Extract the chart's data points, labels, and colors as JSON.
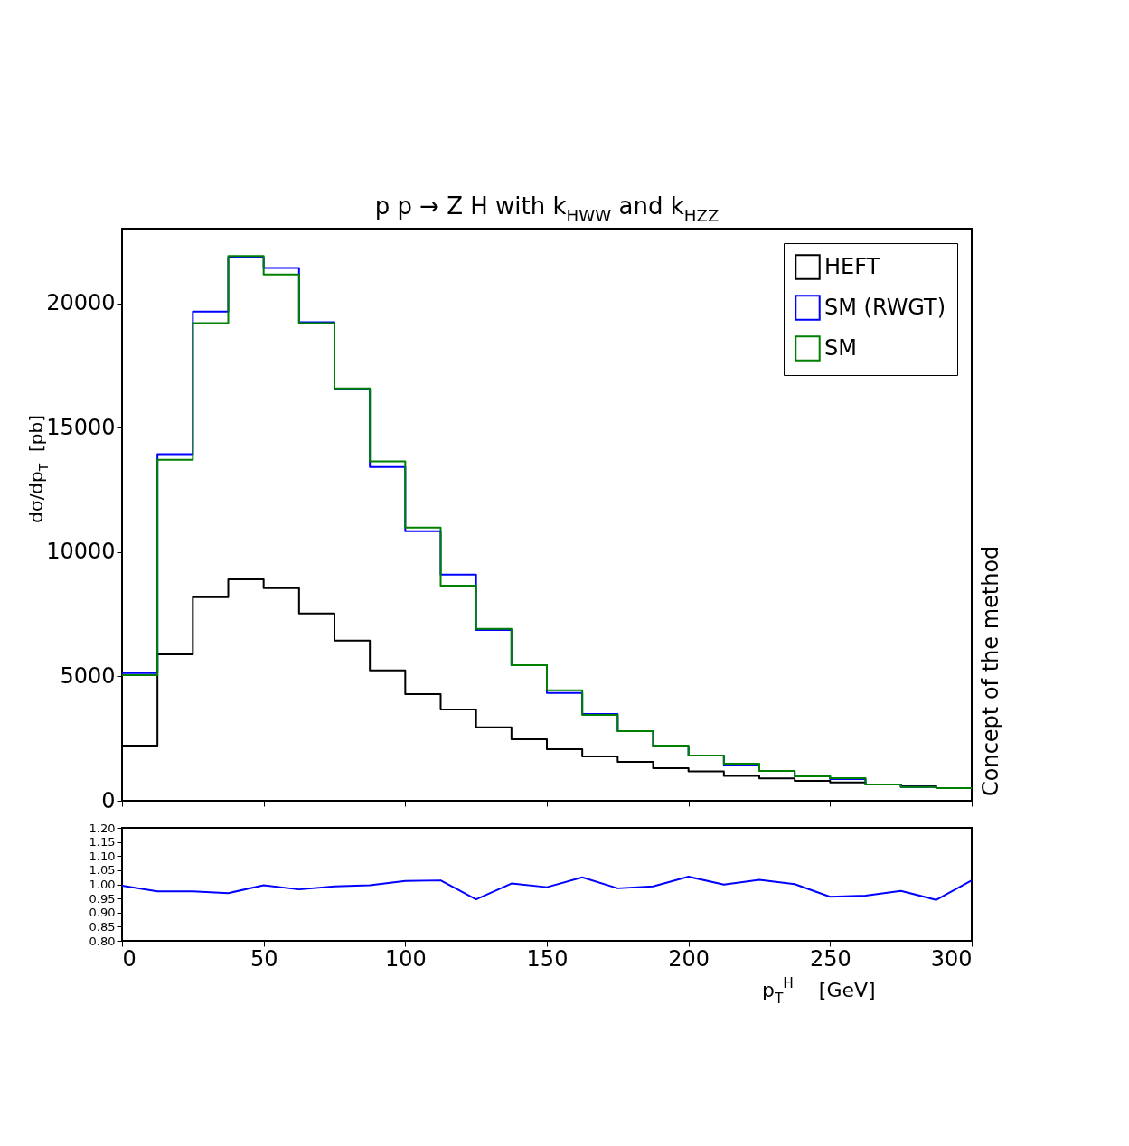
{
  "chart_data": [
    {
      "type": "histogram",
      "title": "p p → Z H with k$_{HWW}$ and k$_{HZZ}$",
      "ylabel": "dσ/dp$_{T}$  [pb]",
      "bins": [
        0,
        12.5,
        25,
        37.5,
        50,
        62.5,
        75,
        87.5,
        100,
        112.5,
        125,
        137.5,
        150,
        162.5,
        175,
        187.5,
        200,
        212.5,
        225,
        237.5,
        250,
        262.5,
        275,
        287.5,
        300
      ],
      "series": [
        {
          "name": "HEFT",
          "color": "#000000",
          "values": [
            2220,
            5890,
            8180,
            8900,
            8550,
            7530,
            6440,
            5240,
            4290,
            3670,
            2950,
            2470,
            2070,
            1780,
            1560,
            1310,
            1180,
            1000,
            900,
            800,
            740,
            650,
            580,
            510
          ]
        },
        {
          "name": "SM (RWGT)",
          "color": "#0000ff",
          "values": [
            5130,
            13930,
            19670,
            21850,
            21420,
            19240,
            16550,
            13420,
            10840,
            9090,
            6870,
            5450,
            4330,
            3490,
            2800,
            2180,
            1820,
            1420,
            1200,
            980,
            870,
            650,
            550,
            510
          ]
        },
        {
          "name": "SM",
          "color": "#008000",
          "values": [
            5050,
            13710,
            19200,
            21900,
            21160,
            19200,
            16580,
            13640,
            10980,
            8650,
            6910,
            5450,
            4440,
            3450,
            2800,
            2220,
            1820,
            1490,
            1200,
            980,
            910,
            650,
            550,
            510
          ]
        }
      ],
      "xlim": [
        0,
        300
      ],
      "xticks": [
        0,
        50,
        100,
        150,
        200,
        250,
        300
      ],
      "ylim": [
        0,
        23000
      ],
      "yticks": [
        0,
        5000,
        10000,
        15000,
        20000
      ],
      "tick_labels": "y",
      "legend": "top right",
      "grid": false,
      "annotations": [
        "Concept of the method"
      ]
    },
    {
      "type": "line",
      "xlabel": "p$_{T}$$^{H}$    [GeV]",
      "x": [
        0,
        12.5,
        25,
        37.5,
        50,
        62.5,
        75,
        87.5,
        100,
        112.5,
        125,
        137.5,
        150,
        162.5,
        175,
        187.5,
        200,
        212.5,
        225,
        237.5,
        250,
        262.5,
        275,
        287.5,
        300
      ],
      "series": [
        {
          "color": "#0000ff",
          "values": [
            0.995,
            0.975,
            0.975,
            0.969,
            0.997,
            0.982,
            0.993,
            0.997,
            1.012,
            1.014,
            0.947,
            1.003,
            0.99,
            1.025,
            0.986,
            0.993,
            1.027,
            0.999,
            1.016,
            1.001,
            0.956,
            0.96,
            0.977,
            0.945,
            1.014
          ]
        }
      ],
      "xlim": [
        0,
        300
      ],
      "xticks": [
        0,
        50,
        100,
        150,
        200,
        250,
        300
      ],
      "ylim": [
        0.8,
        1.2
      ],
      "yticks": [
        {
          "value": 0.8,
          "label": "0.80"
        },
        {
          "value": 0.85,
          "label": "0.85"
        },
        {
          "value": 0.9,
          "label": "0.90"
        },
        {
          "value": 0.95,
          "label": "0.95"
        },
        {
          "value": 1.0,
          "label": "1.00"
        },
        {
          "value": 1.05,
          "label": "1.05"
        },
        {
          "value": 1.1,
          "label": "1.10"
        },
        {
          "value": 1.15,
          "label": "1.15"
        },
        {
          "value": 1.2,
          "label": "1.20"
        }
      ],
      "grid": false,
      "marker": "none",
      "line_style": "solid"
    }
  ]
}
